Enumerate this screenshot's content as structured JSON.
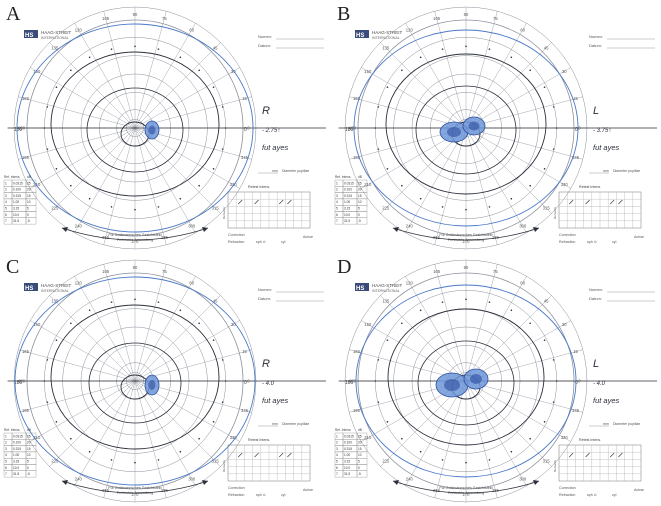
{
  "figure": {
    "panels": [
      {
        "letter": "A",
        "logo": "HS",
        "brand": "HAAG-STREIT",
        "brand_sub": "INTERNATIONAL",
        "header_name": "Nomen:",
        "header_date": "Datum:",
        "note_eye": "R",
        "note_refraction": "- 2.75↑",
        "note_signature": "fut ayes",
        "pupil_label": "Diameter pupillae",
        "pupil_unit": "mm",
        "retest_title": "Retest Intens.",
        "remark_label": "Remarks",
        "correction_label": "Correction",
        "refraction_label": "Refraction",
        "sph_label": "sph ⊙",
        "cyl_label": "cyl",
        "axis_label": "Achse",
        "bottom_text": "Für Goldmannsches Gesichtsfeld",
        "bottom_text2": "Perimetrie Anwendung",
        "scale_label_left": "180",
        "scale_label_right": "0"
      },
      {
        "letter": "B",
        "logo": "HS",
        "brand": "HAAG-STREIT",
        "brand_sub": "INTERNATIONAL",
        "header_name": "Nomen:",
        "header_date": "Datum:",
        "note_eye": "L",
        "note_refraction": "- 3.75↑",
        "note_signature": "fut ayes",
        "pupil_label": "Diameter pupillae",
        "pupil_unit": "mm",
        "retest_title": "Retest Intens.",
        "remark_label": "Remarks",
        "correction_label": "Correction",
        "refraction_label": "Refraction",
        "sph_label": "sph ⊙",
        "cyl_label": "cyl",
        "axis_label": "Achse",
        "bottom_text": "Für Goldmannsches Gesichtsfeld",
        "bottom_text2": "Perimetrie Anwendung",
        "scale_label_left": "180",
        "scale_label_right": "0"
      },
      {
        "letter": "C",
        "logo": "HS",
        "brand": "HAAG-STREIT",
        "brand_sub": "INTERNATIONAL",
        "header_name": "Nomen:",
        "header_date": "Datum:",
        "note_eye": "R",
        "note_refraction": "- 4.0",
        "note_signature": "fut ayes",
        "pupil_label": "Diameter pupillae",
        "pupil_unit": "mm",
        "retest_title": "Retest Intens.",
        "remark_label": "Remarks",
        "correction_label": "Correction",
        "refraction_label": "Refraction",
        "sph_label": "sph ⊙",
        "cyl_label": "cyl",
        "axis_label": "Achse",
        "bottom_text": "Für Goldmannsches Gesichtsfeld",
        "bottom_text2": "Perimetrie Anwendung",
        "scale_label_left": "180",
        "scale_label_right": "0"
      },
      {
        "letter": "D",
        "logo": "HS",
        "brand": "HAAG-STREIT",
        "brand_sub": "INTERNATIONAL",
        "header_name": "Nomen:",
        "header_date": "Datum:",
        "note_eye": "L",
        "note_refraction": "- 4.0",
        "note_signature": "fut ayes",
        "pupil_label": "Diameter pupillae",
        "pupil_unit": "mm",
        "retest_title": "Retest Intens.",
        "remark_label": "Remarks",
        "correction_label": "Correction",
        "refraction_label": "Refraction",
        "sph_label": "sph ⊙",
        "cyl_label": "cyl",
        "axis_label": "Achse",
        "bottom_text": "Für Goldmannsches Gesichtsfeld",
        "bottom_text2": "Perimetrie Anwendung",
        "scale_label_left": "180",
        "scale_label_right": "0"
      }
    ],
    "meridian_labels": [
      "0",
      "15",
      "30",
      "45",
      "60",
      "75",
      "90",
      "105",
      "120",
      "135",
      "150",
      "165",
      "180",
      "195",
      "210",
      "225",
      "240",
      "255",
      "270",
      "285",
      "300",
      "315",
      "330",
      "345"
    ],
    "stimulus_table": {
      "headers": [
        "Ref. Intens.",
        "dB"
      ],
      "rows": [
        [
          "1",
          "0.0315",
          "25"
        ],
        [
          "2",
          "0.100",
          "20"
        ],
        [
          "3",
          "0.315",
          "15"
        ],
        [
          "4",
          "1.00",
          "10"
        ],
        [
          "5",
          "3.15",
          "5"
        ],
        [
          "6",
          "10.0",
          "0"
        ],
        [
          "7",
          "31.5",
          "-5"
        ]
      ]
    },
    "colors": {
      "ink": "#2b2f3a",
      "grid": "#8a8f9a",
      "blue_marker": "#4a78c8",
      "blue_fill": "#6e96d8",
      "blue_dark": "#2d4fa0"
    }
  }
}
